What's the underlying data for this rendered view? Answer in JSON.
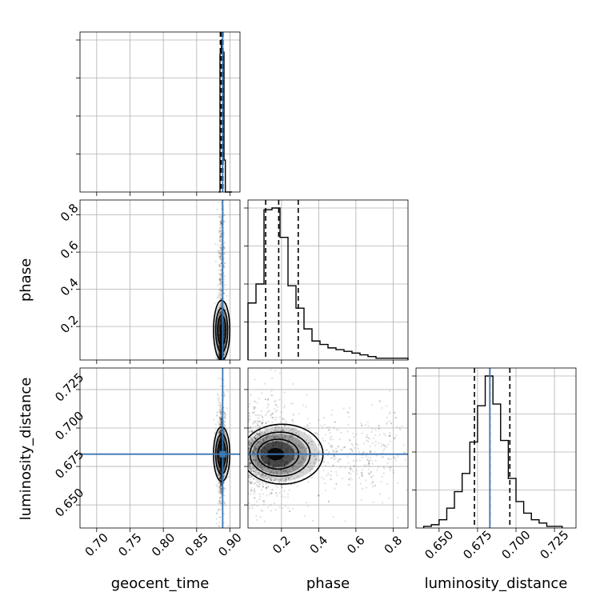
{
  "chart_data": {
    "type": "corner",
    "parameters": [
      "geocent_time",
      "phase",
      "luminosity_distance"
    ],
    "truth": {
      "geocent_time": 0.889,
      "phase": null,
      "luminosity_distance": 0.683
    },
    "colors": {
      "truth": "#3a77b3",
      "hist": "#000000",
      "grid": "#b0b0b0",
      "samples": "#000000"
    },
    "grid": true,
    "axes": {
      "geocent_time": {
        "range": [
          0.675,
          0.915
        ],
        "ticks": [
          0.7,
          0.75,
          0.8,
          0.85,
          0.9
        ],
        "tick_labels": [
          "0.70",
          "0.75",
          "0.80",
          "0.85",
          "0.90"
        ]
      },
      "phase": {
        "range": [
          0.02,
          0.88
        ],
        "ticks": [
          0.2,
          0.4,
          0.6,
          0.8
        ],
        "tick_labels": [
          "0.2",
          "0.4",
          "0.6",
          "0.8"
        ]
      },
      "luminosity_distance": {
        "range": [
          0.635,
          0.739
        ],
        "ticks": [
          0.65,
          0.675,
          0.7,
          0.725
        ],
        "tick_labels": [
          "0.650",
          "0.675",
          "0.700",
          "0.725"
        ]
      }
    },
    "marginals": {
      "geocent_time": {
        "bins": [
          0.883,
          0.885,
          0.887,
          0.889,
          0.891,
          0.893,
          0.903
        ],
        "counts": [
          0.0,
          0.91,
          1.0,
          0.92,
          0.21,
          0.0
        ],
        "quantiles": [
          0.8855,
          0.8875,
          0.8885,
          0.8895
        ]
      },
      "phase": {
        "bins": [
          0.02,
          0.063,
          0.106,
          0.149,
          0.192,
          0.235,
          0.278,
          0.321,
          0.364,
          0.407,
          0.45,
          0.493,
          0.536,
          0.579,
          0.622,
          0.665,
          0.708,
          0.751,
          0.794,
          0.837,
          0.88
        ],
        "counts": [
          0.33,
          0.44,
          0.87,
          0.88,
          0.71,
          0.43,
          0.3,
          0.18,
          0.11,
          0.09,
          0.07,
          0.06,
          0.05,
          0.04,
          0.03,
          0.02,
          0.01,
          0.01,
          0.01,
          0.01
        ],
        "quantiles": [
          0.115,
          0.185,
          0.29
        ]
      },
      "luminosity_distance": {
        "bins": [
          0.64,
          0.645,
          0.65,
          0.655,
          0.66,
          0.665,
          0.67,
          0.675,
          0.68,
          0.685,
          0.69,
          0.695,
          0.7,
          0.705,
          0.71,
          0.715,
          0.72,
          0.725,
          0.73
        ],
        "counts": [
          0.01,
          0.02,
          0.05,
          0.12,
          0.22,
          0.33,
          0.52,
          0.74,
          0.92,
          0.75,
          0.53,
          0.3,
          0.16,
          0.09,
          0.05,
          0.03,
          0.01,
          0.01
        ],
        "quantiles": [
          0.673,
          0.683,
          0.696
        ]
      }
    },
    "joint": {
      "phase|geocent_time": {
        "center": [
          0.8875,
          0.18
        ],
        "spread": [
          0.002,
          0.08
        ]
      },
      "luminosity_distance|geocent_time": {
        "center": [
          0.8875,
          0.683
        ],
        "spread": [
          0.002,
          0.012
        ]
      },
      "luminosity_distance|phase": {
        "center": [
          0.18,
          0.683
        ],
        "spread": [
          0.1,
          0.012
        ]
      }
    }
  }
}
